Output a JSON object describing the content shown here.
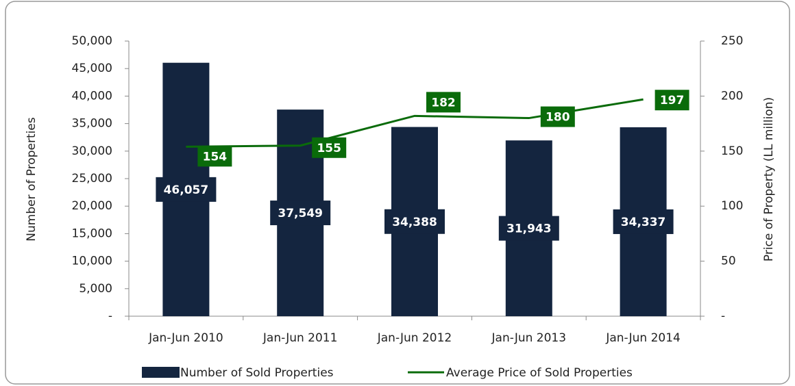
{
  "chart_data": {
    "type": "bar_line",
    "y_label": "Number of Properties",
    "y2_label": "Price of Property (LL million)",
    "categories": [
      "Jan-Jun 2010",
      "Jan-Jun 2011",
      "Jan-Jun 2012",
      "Jan-Jun 2013",
      "Jan-Jun 2014"
    ],
    "series": [
      {
        "name": "Number of Sold Properties",
        "type": "bar",
        "color": "#14253f",
        "values": [
          46057,
          37549,
          34388,
          31943,
          34337
        ],
        "value_labels": [
          "46,057",
          "37,549",
          "34,388",
          "31,943",
          "34,337"
        ]
      },
      {
        "name": "Average Price of Sold Properties",
        "type": "line",
        "axis": "y2",
        "color": "#0a6b0a",
        "values": [
          154,
          155,
          182,
          180,
          197
        ]
      }
    ],
    "ylim": [
      0,
      50000
    ],
    "yticks": [
      {
        "value": 0,
        "label": "-"
      },
      {
        "value": 5000,
        "label": "5,000"
      },
      {
        "value": 10000,
        "label": "10,000"
      },
      {
        "value": 15000,
        "label": "15,000"
      },
      {
        "value": 20000,
        "label": "20,000"
      },
      {
        "value": 25000,
        "label": "25,000"
      },
      {
        "value": 30000,
        "label": "30,000"
      },
      {
        "value": 35000,
        "label": "35,000"
      },
      {
        "value": 40000,
        "label": "40,000"
      },
      {
        "value": 45000,
        "label": "45,000"
      },
      {
        "value": 50000,
        "label": "50,000"
      }
    ],
    "y2lim": [
      0,
      250
    ],
    "y2ticks": [
      {
        "value": 0,
        "label": "-"
      },
      50,
      100,
      150,
      200,
      250
    ],
    "legend": "bottom"
  }
}
